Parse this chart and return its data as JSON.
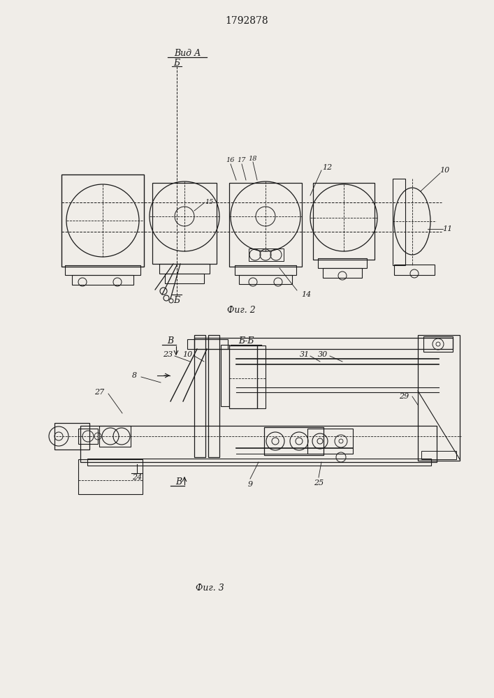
{
  "patent_number": "1792878",
  "fig2_caption": "Фиг. 2",
  "fig3_caption": "Фиг. 3",
  "view_label": "Вид А",
  "section_label": "Б-Б",
  "background_color": "#f0ede8",
  "line_color": "#1a1a1a",
  "line_width": 0.8
}
